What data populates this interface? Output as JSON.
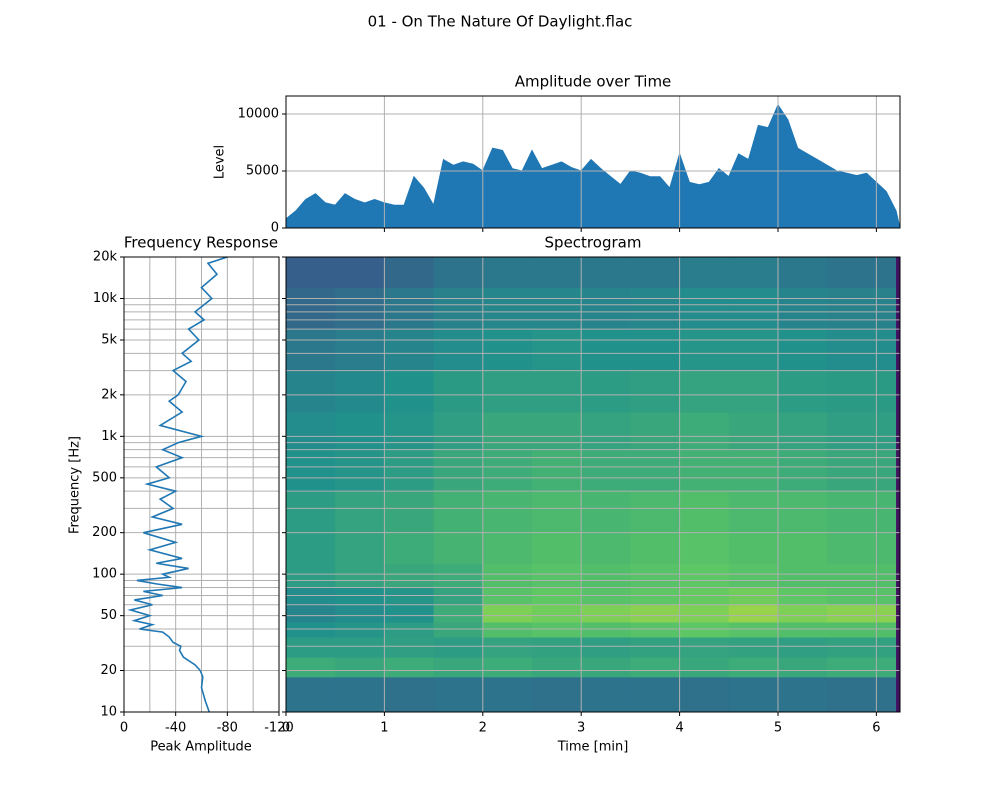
{
  "title": "01 - On The Nature Of Daylight.flac",
  "chart_data": [
    {
      "type": "area",
      "title": "Amplitude over Time",
      "y_label": "Level",
      "color": "#1f77b4",
      "x": [
        0,
        0.1,
        0.2,
        0.3,
        0.4,
        0.5,
        0.6,
        0.7,
        0.8,
        0.9,
        1,
        1.1,
        1.2,
        1.3,
        1.4,
        1.5,
        1.6,
        1.7,
        1.8,
        1.9,
        2,
        2.1,
        2.2,
        2.3,
        2.4,
        2.5,
        2.6,
        2.7,
        2.8,
        2.9,
        3,
        3.1,
        3.2,
        3.3,
        3.4,
        3.5,
        3.6,
        3.7,
        3.8,
        3.9,
        4,
        4.1,
        4.2,
        4.3,
        4.4,
        4.5,
        4.6,
        4.7,
        4.8,
        4.9,
        5,
        5.1,
        5.2,
        5.3,
        5.4,
        5.5,
        5.6,
        5.7,
        5.8,
        5.9,
        6,
        6.1,
        6.2,
        6.24
      ],
      "values": [
        800,
        1500,
        2500,
        3000,
        2200,
        2000,
        3000,
        2500,
        2200,
        2500,
        2200,
        2000,
        2000,
        4500,
        3500,
        2000,
        6000,
        5500,
        5800,
        5600,
        5000,
        7000,
        6800,
        5200,
        5000,
        6800,
        5200,
        5500,
        5800,
        5300,
        5000,
        6000,
        5200,
        4500,
        3800,
        5000,
        4800,
        4500,
        4500,
        3500,
        6500,
        4000,
        3800,
        4000,
        5200,
        4500,
        6500,
        6000,
        9000,
        8800,
        10800,
        9500,
        7000,
        6500,
        6000,
        5500,
        5000,
        4800,
        4600,
        4800,
        4000,
        3200,
        1500,
        0
      ],
      "xlim": [
        0,
        6.24
      ],
      "ylim": [
        0,
        11580
      ],
      "xticks": [
        1,
        2,
        3,
        4,
        5,
        6
      ],
      "xticklabels": false,
      "yticks": [
        0,
        5000,
        10000
      ],
      "grid": true
    },
    {
      "type": "line",
      "title": "Frequency Response",
      "x_label": "Peak Amplitude",
      "y_label": "Frequency [Hz]",
      "color": "#1f77b4",
      "x": [
        -66,
        -63,
        -60,
        -61,
        -59,
        -55,
        -46,
        -43,
        -44,
        -38,
        -35,
        -30,
        -12,
        -22,
        -8,
        -20,
        -5,
        -22,
        -8,
        -30,
        -15,
        -45,
        -25,
        -10,
        -35,
        -30,
        -50,
        -25,
        -45,
        -20,
        -40,
        -15,
        -45,
        -22,
        -38,
        -28,
        -40,
        -18,
        -35,
        -25,
        -45,
        -30,
        -42,
        -60,
        -28,
        -45,
        -35,
        -42,
        -48,
        -38,
        -52,
        -45,
        -58,
        -50,
        -62,
        -55,
        -68,
        -60,
        -72,
        -65,
        -80
      ],
      "y": [
        10,
        12,
        15,
        18,
        20,
        22,
        25,
        28,
        30,
        32,
        35,
        38,
        40,
        43,
        46,
        50,
        55,
        60,
        65,
        70,
        75,
        80,
        85,
        90,
        95,
        100,
        110,
        120,
        130,
        150,
        170,
        200,
        230,
        260,
        300,
        350,
        400,
        450,
        500,
        600,
        700,
        800,
        900,
        1000,
        1200,
        1500,
        1800,
        2000,
        2500,
        3000,
        3500,
        4000,
        5000,
        6000,
        7000,
        8000,
        10000,
        12000,
        15000,
        18000,
        20000
      ],
      "xlim": [
        0,
        -120
      ],
      "xticks": [
        0,
        -40,
        -80,
        -120
      ],
      "xminor": [
        -20,
        -60,
        -100
      ],
      "ylim": [
        10,
        20000
      ],
      "yscale": "log",
      "yticks": [
        10,
        20,
        50,
        100,
        200,
        500,
        {
          "value": 1000,
          "label": "1k"
        },
        {
          "value": 2000,
          "label": "2k"
        },
        {
          "value": 5000,
          "label": "5k"
        },
        {
          "value": 10000,
          "label": "10k"
        },
        {
          "value": 20000,
          "label": "20k"
        }
      ],
      "yminor": [
        30,
        40,
        60,
        70,
        80,
        90,
        300,
        400,
        600,
        700,
        800,
        900,
        3000,
        4000,
        6000,
        7000,
        8000,
        9000
      ],
      "grid": true
    },
    {
      "type": "heatmap",
      "title": "Spectrogram",
      "x_label": "Time [min]",
      "sharey": true,
      "colormap": [
        "#440154",
        "#3b528b",
        "#21918c",
        "#5ec962",
        "#fde725"
      ],
      "time_edges": [
        0,
        0.5,
        1,
        1.5,
        2,
        2.5,
        3,
        3.5,
        4,
        4.5,
        5,
        5.5,
        6.2,
        6.24
      ],
      "freq_edges": [
        10,
        18,
        25,
        35,
        45,
        60,
        80,
        120,
        200,
        400,
        800,
        1500,
        3000,
        6000,
        12000,
        20000
      ],
      "z": [
        [
          0.38,
          0.38,
          0.37,
          0.38,
          0.38,
          0.37,
          0.38,
          0.38,
          0.37,
          0.38,
          0.38,
          0.37,
          0.05
        ],
        [
          0.62,
          0.6,
          0.62,
          0.6,
          0.62,
          0.6,
          0.6,
          0.62,
          0.6,
          0.62,
          0.6,
          0.62,
          0.05
        ],
        [
          0.55,
          0.55,
          0.56,
          0.55,
          0.58,
          0.57,
          0.56,
          0.57,
          0.58,
          0.57,
          0.56,
          0.57,
          0.05
        ],
        [
          0.5,
          0.52,
          0.55,
          0.6,
          0.7,
          0.72,
          0.7,
          0.72,
          0.74,
          0.72,
          0.7,
          0.7,
          0.05
        ],
        [
          0.45,
          0.48,
          0.5,
          0.62,
          0.8,
          0.78,
          0.8,
          0.82,
          0.8,
          0.84,
          0.8,
          0.82,
          0.05
        ],
        [
          0.48,
          0.5,
          0.52,
          0.58,
          0.72,
          0.75,
          0.72,
          0.74,
          0.76,
          0.78,
          0.74,
          0.72,
          0.05
        ],
        [
          0.55,
          0.58,
          0.6,
          0.62,
          0.7,
          0.72,
          0.7,
          0.72,
          0.74,
          0.72,
          0.7,
          0.7,
          0.05
        ],
        [
          0.55,
          0.58,
          0.62,
          0.65,
          0.68,
          0.7,
          0.68,
          0.7,
          0.72,
          0.7,
          0.7,
          0.68,
          0.05
        ],
        [
          0.55,
          0.58,
          0.6,
          0.64,
          0.66,
          0.68,
          0.66,
          0.68,
          0.7,
          0.68,
          0.68,
          0.66,
          0.05
        ],
        [
          0.5,
          0.52,
          0.55,
          0.6,
          0.62,
          0.64,
          0.62,
          0.62,
          0.64,
          0.64,
          0.62,
          0.6,
          0.05
        ],
        [
          0.48,
          0.5,
          0.52,
          0.56,
          0.6,
          0.6,
          0.58,
          0.6,
          0.62,
          0.6,
          0.58,
          0.56,
          0.05
        ],
        [
          0.45,
          0.47,
          0.5,
          0.54,
          0.56,
          0.56,
          0.55,
          0.56,
          0.58,
          0.58,
          0.55,
          0.54,
          0.05
        ],
        [
          0.4,
          0.42,
          0.45,
          0.48,
          0.5,
          0.52,
          0.5,
          0.5,
          0.52,
          0.52,
          0.5,
          0.48,
          0.05
        ],
        [
          0.34,
          0.36,
          0.4,
          0.44,
          0.46,
          0.46,
          0.45,
          0.46,
          0.48,
          0.48,
          0.45,
          0.44,
          0.05
        ],
        [
          0.3,
          0.3,
          0.34,
          0.38,
          0.4,
          0.4,
          0.4,
          0.4,
          0.42,
          0.42,
          0.4,
          0.38,
          0.05
        ]
      ],
      "xlim": [
        0,
        6.24
      ],
      "xticks": [
        0,
        1,
        2,
        3,
        4,
        5,
        6
      ],
      "grid": true
    }
  ]
}
